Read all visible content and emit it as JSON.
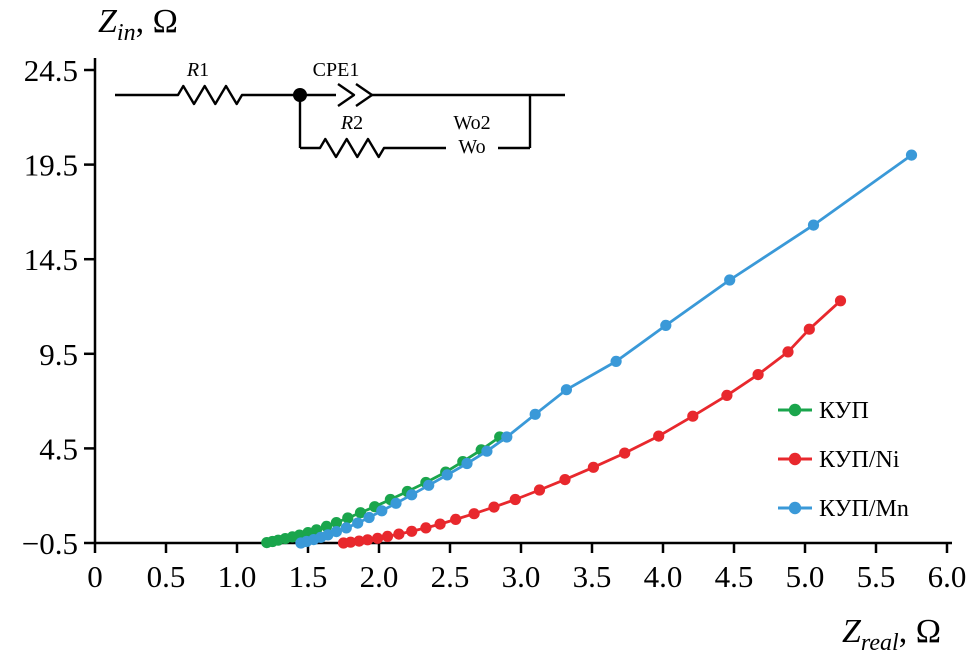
{
  "figure": {
    "background": "#ffffff"
  },
  "axis": {
    "y_symbol": "Z",
    "y_subscript": "in",
    "x_symbol": "Z",
    "x_subscript": "real",
    "unit_suffix": ", Ω"
  },
  "legend": {
    "items": [
      {
        "id": "kup",
        "label": "КУП",
        "color": "#1aa54c"
      },
      {
        "id": "kup-ni",
        "label": "КУП/Ni",
        "color": "#e8282d"
      },
      {
        "id": "kup-mn",
        "label": "КУП/Mn",
        "color": "#3a99d8"
      }
    ]
  },
  "circuit": {
    "r1_symbol": "R",
    "r1_index": "1",
    "cpe1": "CPE1",
    "r2_symbol": "R",
    "r2_index": "2",
    "wo2": "Wo2",
    "wo": "Wo"
  },
  "chart_data": {
    "type": "line",
    "title": "",
    "xlabel": "Z_real, Ω",
    "ylabel": "Z_in, Ω",
    "xlim": [
      0,
      6.0
    ],
    "ylim": [
      -0.5,
      24.5
    ],
    "grid": false,
    "legend_position": "right-middle",
    "x_tick_values": [
      0,
      0.5,
      1.0,
      1.5,
      2.0,
      2.5,
      3.0,
      3.5,
      4.0,
      4.5,
      5.0,
      5.5,
      6.0
    ],
    "x_tick_labels": [
      "0",
      "0.5",
      "1.0",
      "1.5",
      "2.0",
      "2.5",
      "3.0",
      "3.5",
      "4.0",
      "4.5",
      "5.0",
      "5.5",
      "6.0"
    ],
    "y_tick_values": [
      -0.5,
      4.5,
      9.5,
      14.5,
      19.5,
      24.5
    ],
    "y_tick_labels": [
      "−0.5",
      "4.5",
      "9.5",
      "14.5",
      "19.5",
      "24.5"
    ],
    "series": [
      {
        "id": "kup",
        "name": "КУП",
        "color": "#1aa54c",
        "points": [
          [
            1.21,
            -0.48
          ],
          [
            1.25,
            -0.42
          ],
          [
            1.29,
            -0.35
          ],
          [
            1.34,
            -0.27
          ],
          [
            1.39,
            -0.18
          ],
          [
            1.44,
            -0.08
          ],
          [
            1.5,
            0.05
          ],
          [
            1.56,
            0.2
          ],
          [
            1.63,
            0.38
          ],
          [
            1.7,
            0.58
          ],
          [
            1.78,
            0.82
          ],
          [
            1.87,
            1.1
          ],
          [
            1.97,
            1.42
          ],
          [
            2.08,
            1.8
          ],
          [
            2.2,
            2.22
          ],
          [
            2.33,
            2.7
          ],
          [
            2.47,
            3.25
          ],
          [
            2.59,
            3.8
          ],
          [
            2.72,
            4.42
          ],
          [
            2.85,
            5.1
          ]
        ]
      },
      {
        "id": "kup-ni",
        "name": "КУП/Ni",
        "color": "#e8282d",
        "points": [
          [
            1.75,
            -0.5
          ],
          [
            1.8,
            -0.46
          ],
          [
            1.86,
            -0.4
          ],
          [
            1.92,
            -0.33
          ],
          [
            1.99,
            -0.25
          ],
          [
            2.06,
            -0.15
          ],
          [
            2.14,
            -0.03
          ],
          [
            2.23,
            0.12
          ],
          [
            2.33,
            0.3
          ],
          [
            2.43,
            0.5
          ],
          [
            2.54,
            0.75
          ],
          [
            2.67,
            1.05
          ],
          [
            2.81,
            1.4
          ],
          [
            2.96,
            1.8
          ],
          [
            3.13,
            2.3
          ],
          [
            3.31,
            2.85
          ],
          [
            3.51,
            3.5
          ],
          [
            3.73,
            4.25
          ],
          [
            3.97,
            5.15
          ],
          [
            4.21,
            6.2
          ],
          [
            4.45,
            7.3
          ],
          [
            4.67,
            8.4
          ],
          [
            4.88,
            9.6
          ],
          [
            5.03,
            10.8
          ],
          [
            5.25,
            12.3
          ]
        ]
      },
      {
        "id": "kup-mn",
        "name": "КУП/Mn",
        "color": "#3a99d8",
        "points": [
          [
            1.45,
            -0.5
          ],
          [
            1.49,
            -0.42
          ],
          [
            1.54,
            -0.32
          ],
          [
            1.59,
            -0.2
          ],
          [
            1.64,
            -0.07
          ],
          [
            1.7,
            0.1
          ],
          [
            1.77,
            0.3
          ],
          [
            1.85,
            0.55
          ],
          [
            1.93,
            0.85
          ],
          [
            2.02,
            1.2
          ],
          [
            2.12,
            1.6
          ],
          [
            2.23,
            2.05
          ],
          [
            2.35,
            2.55
          ],
          [
            2.48,
            3.1
          ],
          [
            2.62,
            3.7
          ],
          [
            2.76,
            4.35
          ],
          [
            2.9,
            5.1
          ],
          [
            3.1,
            6.3
          ],
          [
            3.32,
            7.6
          ],
          [
            3.67,
            9.1
          ],
          [
            4.02,
            11.0
          ],
          [
            4.47,
            13.4
          ],
          [
            5.06,
            16.3
          ],
          [
            5.75,
            20.0
          ]
        ]
      }
    ]
  }
}
